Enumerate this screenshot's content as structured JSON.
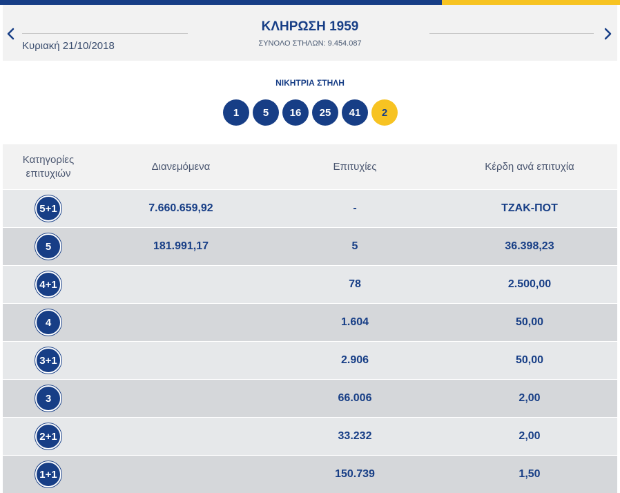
{
  "colors": {
    "primary": "#173e86",
    "accent": "#f7c322"
  },
  "header": {
    "date": "Κυριακή 21/10/2018",
    "draw_title": "ΚΛΗΡΩΣΗ 1959",
    "columns_total": "ΣΥΝΟΛΟ ΣΤΗΛΩΝ: 9.454.087",
    "prev_icon": "chevron-left-icon",
    "next_icon": "chevron-right-icon"
  },
  "winning": {
    "label": "ΝΙΚΗΤΡΙΑ ΣΤΗΛΗ",
    "numbers": [
      "1",
      "5",
      "16",
      "25",
      "41"
    ],
    "bonus": "2"
  },
  "table": {
    "headers": {
      "category_line1": "Κατηγορίες",
      "category_line2": "επιτυχιών",
      "distributed": "Διανεμόμενα",
      "winners": "Επιτυχίες",
      "prize": "Κέρδη ανά επιτυχία"
    },
    "rows": [
      {
        "category": "5+1",
        "distributed": "7.660.659,92",
        "winners": "-",
        "prize": "ΤΖΑΚ-ΠΟΤ"
      },
      {
        "category": "5",
        "distributed": "181.991,17",
        "winners": "5",
        "prize": "36.398,23"
      },
      {
        "category": "4+1",
        "distributed": "",
        "winners": "78",
        "prize": "2.500,00"
      },
      {
        "category": "4",
        "distributed": "",
        "winners": "1.604",
        "prize": "50,00"
      },
      {
        "category": "3+1",
        "distributed": "",
        "winners": "2.906",
        "prize": "50,00"
      },
      {
        "category": "3",
        "distributed": "",
        "winners": "66.006",
        "prize": "2,00"
      },
      {
        "category": "2+1",
        "distributed": "",
        "winners": "33.232",
        "prize": "2,00"
      },
      {
        "category": "1+1",
        "distributed": "",
        "winners": "150.739",
        "prize": "1,50"
      }
    ]
  }
}
